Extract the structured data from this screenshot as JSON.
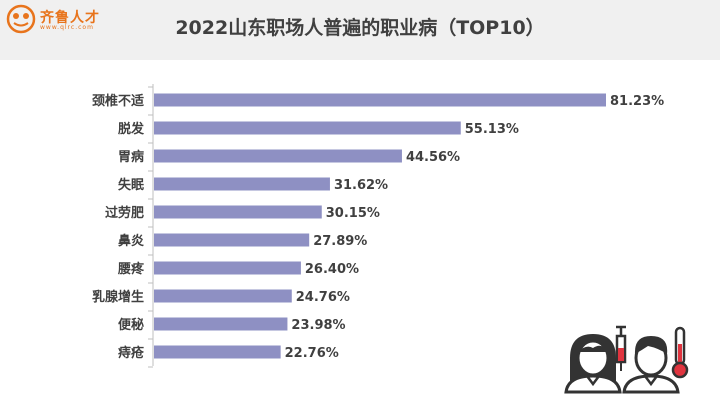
{
  "logo": {
    "name": "齐鲁人才",
    "url": "www.qlrc.com"
  },
  "chart_data": {
    "type": "bar",
    "orientation": "horizontal",
    "title": "2022山东职场人普遍的职业病（TOP10）",
    "categories": [
      "颈椎不适",
      "脱发",
      "胃病",
      "失眠",
      "过劳肥",
      "鼻炎",
      "腰疼",
      "乳腺增生",
      "便秘",
      "痔疮"
    ],
    "values": [
      81.23,
      55.13,
      44.56,
      31.62,
      30.15,
      27.89,
      26.4,
      24.76,
      23.98,
      22.76
    ],
    "value_labels": [
      "81.23%",
      "55.13%",
      "44.56%",
      "31.62%",
      "30.15%",
      "27.89%",
      "26.40%",
      "24.76%",
      "23.98%",
      "22.76%"
    ],
    "xlim": [
      0,
      100
    ],
    "grid": false,
    "legend": "none",
    "bar_color": "#8e90c3"
  },
  "icons": [
    "doctor-woman-icon",
    "syringe-icon",
    "patient-man-icon",
    "thermometer-icon"
  ],
  "colors": {
    "accent_red": "#e0343f",
    "header_bg": "#f0f0f0",
    "logo_orange": "#e8741c"
  }
}
